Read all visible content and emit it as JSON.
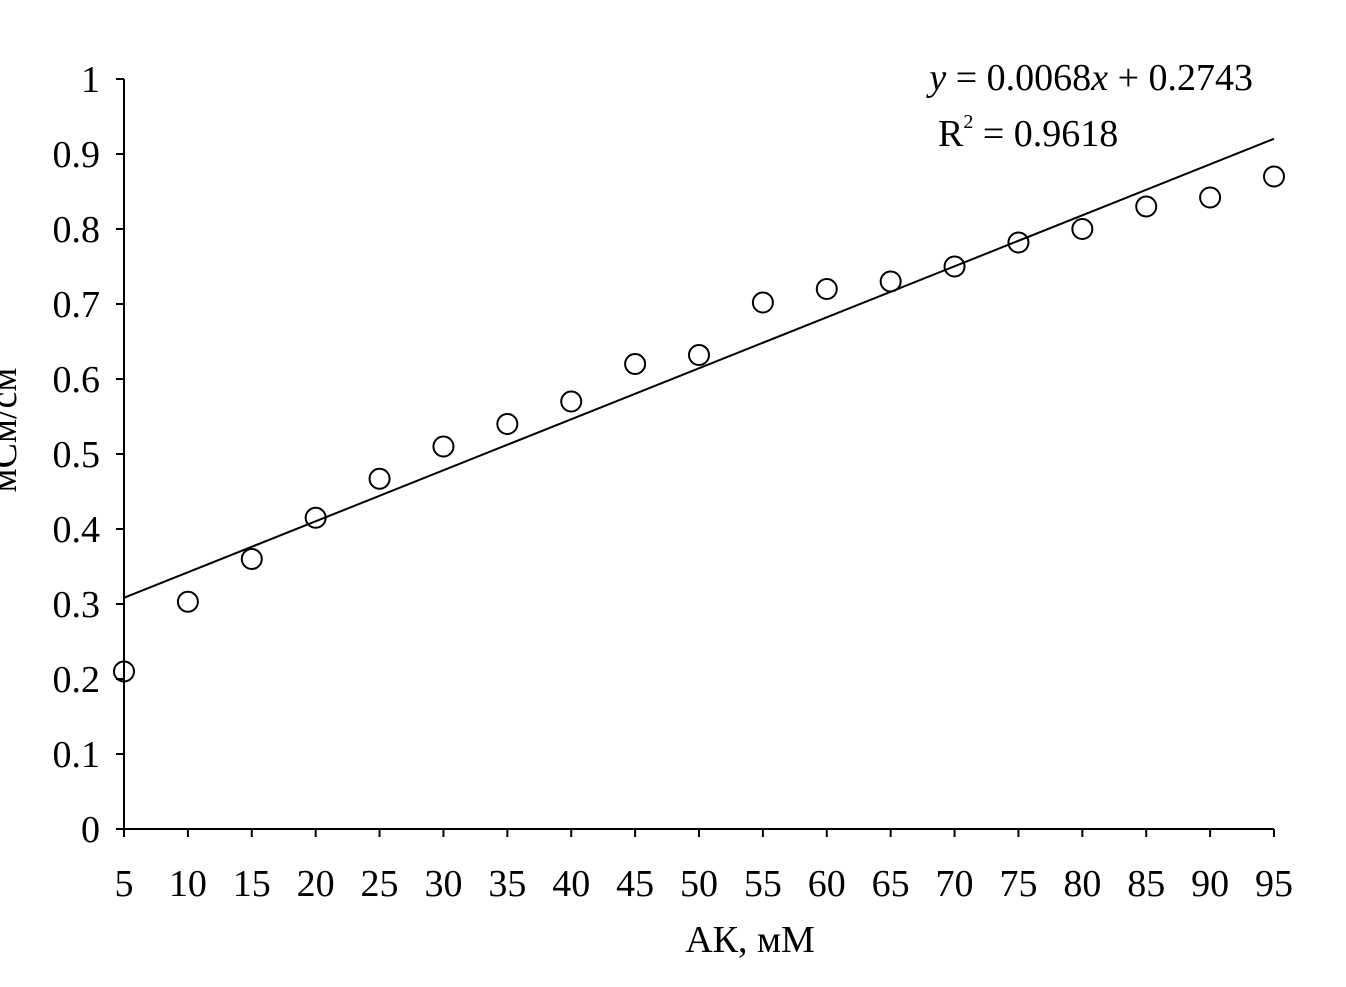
{
  "chart_data": {
    "type": "scatter",
    "title": "",
    "xlabel": "АК, мМ",
    "ylabel": "мСм/см",
    "xlim": [
      5,
      95
    ],
    "ylim": [
      0,
      1
    ],
    "x_ticks": [
      5,
      10,
      15,
      20,
      25,
      30,
      35,
      40,
      45,
      50,
      55,
      60,
      65,
      70,
      75,
      80,
      85,
      90,
      95
    ],
    "y_ticks": [
      0,
      0.1,
      0.2,
      0.3,
      0.4,
      0.5,
      0.6,
      0.7,
      0.8,
      0.9,
      1
    ],
    "y_tick_labels": [
      "0",
      "0.1",
      "0.2",
      "0.3",
      "0.4",
      "0.5",
      "0.6",
      "0.7",
      "0.8",
      "0.9",
      "1"
    ],
    "grid": false,
    "marker": "open-circle",
    "series": [
      {
        "x": [
          5,
          10,
          15,
          20,
          25,
          30,
          35,
          40,
          45,
          50,
          55,
          60,
          65,
          70,
          75,
          80,
          85,
          90,
          95
        ],
        "y": [
          0.21,
          0.303,
          0.36,
          0.415,
          0.467,
          0.51,
          0.54,
          0.57,
          0.62,
          0.632,
          0.702,
          0.72,
          0.73,
          0.75,
          0.782,
          0.8,
          0.83,
          0.842,
          0.87
        ]
      }
    ],
    "trendline": {
      "type": "linear",
      "slope": 0.0068,
      "intercept": 0.2743,
      "x_range": [
        5,
        95
      ]
    },
    "annotations": {
      "equation_y": "y",
      "equation_rest": " = 0.0068",
      "equation_x": "x",
      "equation_tail": " + 0.2743",
      "r2_label": "R",
      "r2_sup": "2",
      "r2_value": " = 0.9618"
    }
  }
}
